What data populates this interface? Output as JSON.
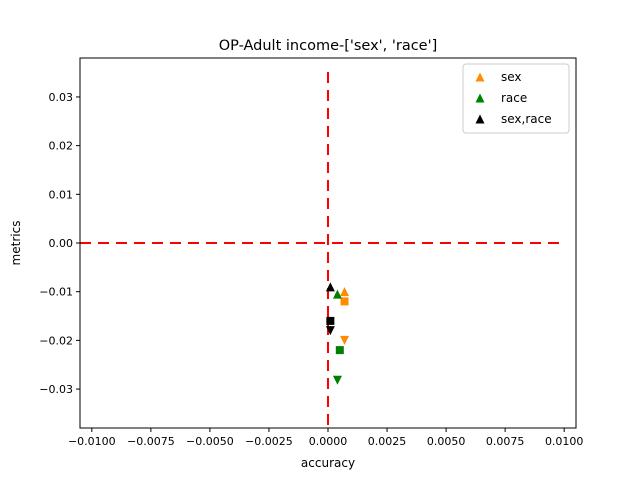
{
  "chart_data": {
    "type": "scatter",
    "title": "OP-Adult income-['sex', 'race']",
    "xlabel": "accuracy",
    "ylabel": "metrics",
    "xlim": [
      -0.0105,
      0.0105
    ],
    "ylim": [
      -0.038,
      0.038
    ],
    "x_ticks": [
      {
        "value": -0.01,
        "label": "−0.0100"
      },
      {
        "value": -0.0075,
        "label": "−0.0075"
      },
      {
        "value": -0.005,
        "label": "−0.0050"
      },
      {
        "value": -0.0025,
        "label": "−0.0025"
      },
      {
        "value": 0.0,
        "label": "0.0000"
      },
      {
        "value": 0.0025,
        "label": "0.0025"
      },
      {
        "value": 0.005,
        "label": "0.0050"
      },
      {
        "value": 0.0075,
        "label": "0.0075"
      },
      {
        "value": 0.01,
        "label": "0.0100"
      }
    ],
    "y_ticks": [
      {
        "value": 0.03,
        "label": "0.03"
      },
      {
        "value": 0.02,
        "label": "0.02"
      },
      {
        "value": 0.01,
        "label": "0.01"
      },
      {
        "value": 0.0,
        "label": "0.00"
      },
      {
        "value": -0.01,
        "label": "−0.01"
      },
      {
        "value": -0.02,
        "label": "−0.02"
      },
      {
        "value": -0.03,
        "label": "−0.03"
      }
    ],
    "reference_lines": [
      {
        "orientation": "vertical",
        "value": 0.0,
        "color": "#ff0000",
        "style": "dashed"
      },
      {
        "orientation": "horizontal",
        "value": 0.0,
        "color": "#ff0000",
        "style": "dashed"
      }
    ],
    "grid": false,
    "legend_position": "top-right",
    "series": [
      {
        "name": "sex",
        "color": "#ff8c00",
        "points": [
          {
            "x": 0.0007,
            "y": -0.01,
            "marker": "triangle-up"
          },
          {
            "x": 0.0007,
            "y": -0.012,
            "marker": "square"
          },
          {
            "x": 0.0007,
            "y": -0.02,
            "marker": "triangle-down"
          }
        ]
      },
      {
        "name": "race",
        "color": "#008000",
        "points": [
          {
            "x": 0.0004,
            "y": -0.0105,
            "marker": "triangle-up"
          },
          {
            "x": 0.0005,
            "y": -0.022,
            "marker": "square"
          },
          {
            "x": 0.0004,
            "y": -0.0282,
            "marker": "triangle-down"
          }
        ]
      },
      {
        "name": "sex,race",
        "color": "#000000",
        "points": [
          {
            "x": 0.0001,
            "y": -0.009,
            "marker": "triangle-up"
          },
          {
            "x": 0.0001,
            "y": -0.016,
            "marker": "square"
          },
          {
            "x": 0.0001,
            "y": -0.018,
            "marker": "triangle-down"
          }
        ]
      }
    ]
  }
}
